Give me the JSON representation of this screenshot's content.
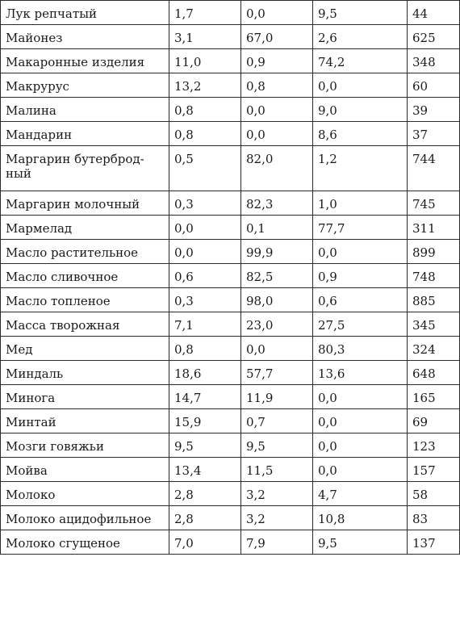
{
  "rows": [
    {
      "name": "Лук репчатый",
      "protein": "1,7",
      "fat": "0,0",
      "carbs": "9,5",
      "kcal": "44"
    },
    {
      "name": "Майонез",
      "protein": "3,1",
      "fat": "67,0",
      "carbs": "2,6",
      "kcal": "625"
    },
    {
      "name": "Макаронные изделия",
      "protein": "11,0",
      "fat": "0,9",
      "carbs": "74,2",
      "kcal": "348"
    },
    {
      "name": "Макрурус",
      "protein": "13,2",
      "fat": "0,8",
      "carbs": "0,0",
      "kcal": "60"
    },
    {
      "name": "Малина",
      "protein": "0,8",
      "fat": "0,0",
      "carbs": "9,0",
      "kcal": "39"
    },
    {
      "name": "Мандарин",
      "protein": "0,8",
      "fat": "0,0",
      "carbs": "8,6",
      "kcal": "37"
    },
    {
      "name": "Маргарин бутерброд-ный",
      "protein": "0,5",
      "fat": "82,0",
      "carbs": "1,2",
      "kcal": "744"
    },
    {
      "name": "Маргарин молочный",
      "protein": "0,3",
      "fat": "82,3",
      "carbs": "1,0",
      "kcal": "745"
    },
    {
      "name": "Мармелад",
      "protein": "0,0",
      "fat": "0,1",
      "carbs": "77,7",
      "kcal": "311"
    },
    {
      "name": "Масло растительное",
      "protein": "0,0",
      "fat": "99,9",
      "carbs": "0,0",
      "kcal": "899"
    },
    {
      "name": "Масло сливочное",
      "protein": "0,6",
      "fat": "82,5",
      "carbs": "0,9",
      "kcal": "748"
    },
    {
      "name": "Масло топленое",
      "protein": "0,3",
      "fat": "98,0",
      "carbs": "0,6",
      "kcal": "885"
    },
    {
      "name": "Масса творожная",
      "protein": "7,1",
      "fat": "23,0",
      "carbs": "27,5",
      "kcal": "345"
    },
    {
      "name": "Мед",
      "protein": "0,8",
      "fat": "0,0",
      "carbs": "80,3",
      "kcal": "324"
    },
    {
      "name": "Миндаль",
      "protein": "18,6",
      "fat": "57,7",
      "carbs": "13,6",
      "kcal": "648"
    },
    {
      "name": "Минога",
      "protein": "14,7",
      "fat": "11,9",
      "carbs": "0,0",
      "kcal": "165"
    },
    {
      "name": "Минтай",
      "protein": "15,9",
      "fat": "0,7",
      "carbs": "0,0",
      "kcal": "69"
    },
    {
      "name": "Мозги говяжьи",
      "protein": "9,5",
      "fat": "9,5",
      "carbs": "0,0",
      "kcal": "123"
    },
    {
      "name": "Мойва",
      "protein": "13,4",
      "fat": "11,5",
      "carbs": "0,0",
      "kcal": "157"
    },
    {
      "name": "Молоко",
      "protein": "2,8",
      "fat": "3,2",
      "carbs": "4,7",
      "kcal": "58"
    },
    {
      "name": "Молоко ацидофильное",
      "protein": "2,8",
      "fat": "3,2",
      "carbs": "10,8",
      "kcal": "83"
    },
    {
      "name": "Молоко сгущеное",
      "protein": "7,0",
      "fat": "7,9",
      "carbs": "9,5",
      "kcal": "137"
    }
  ]
}
